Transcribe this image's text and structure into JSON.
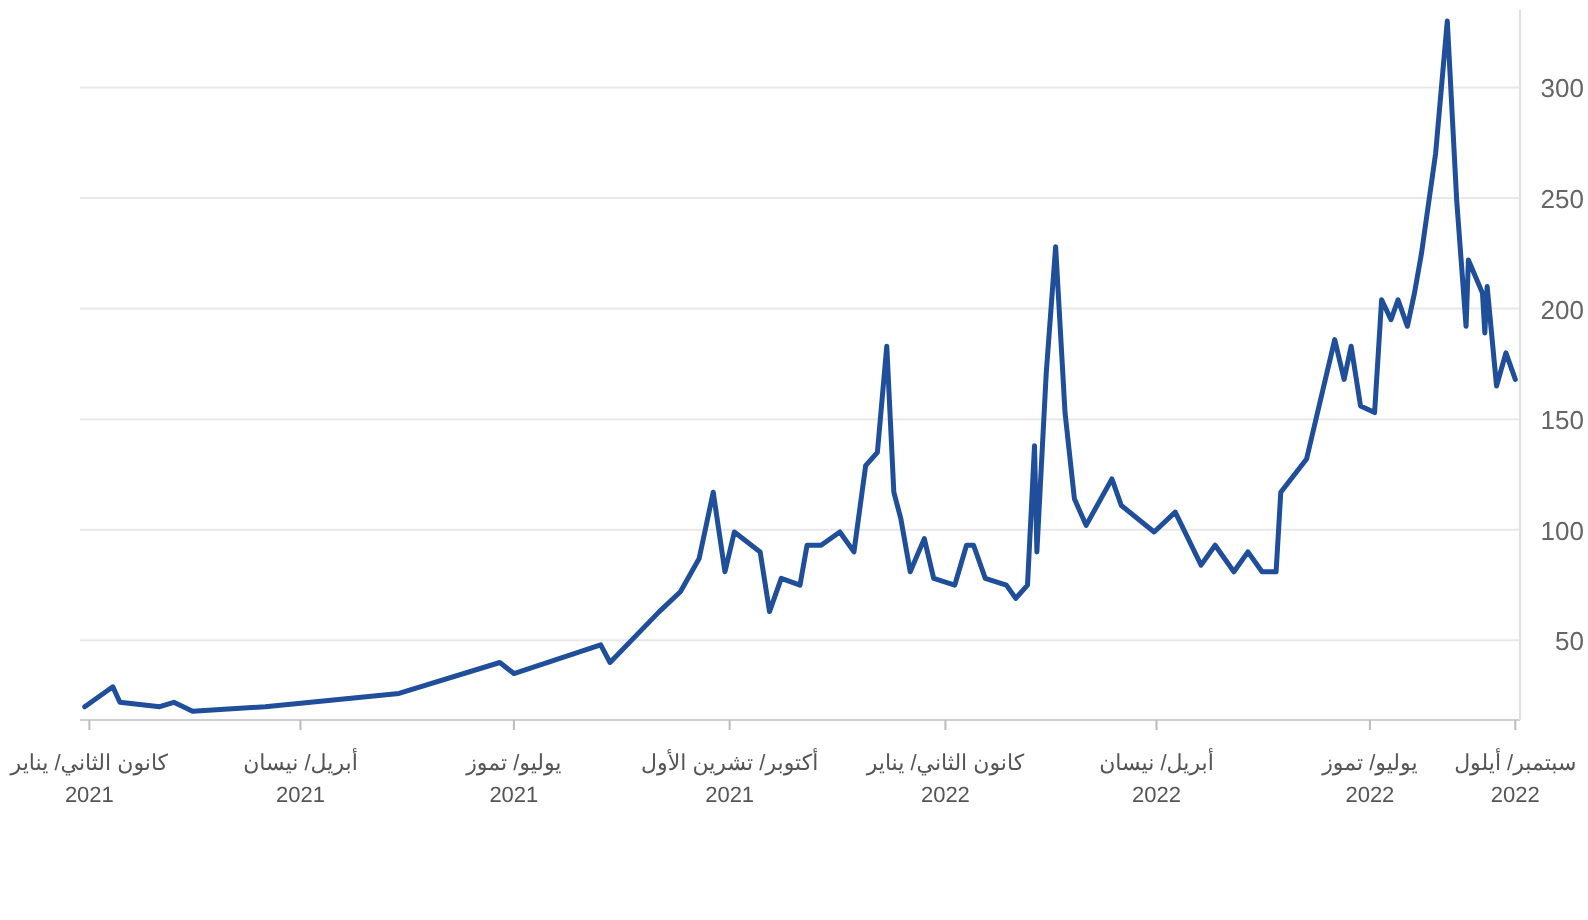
{
  "chart_data": {
    "type": "line",
    "x": [
      "2020-12-30",
      "2021-01-11",
      "2021-01-14",
      "2021-01-31",
      "2021-02-06",
      "2021-02-14",
      "2021-03-17",
      "2021-05-13",
      "2021-06-25",
      "2021-07-01",
      "2021-08-07",
      "2021-08-11",
      "2021-09-01",
      "2021-09-10",
      "2021-09-18",
      "2021-09-24",
      "2021-09-29",
      "2021-10-03",
      "2021-10-14",
      "2021-10-18",
      "2021-10-23",
      "2021-10-31",
      "2021-11-03",
      "2021-11-09",
      "2021-11-17",
      "2021-11-23",
      "2021-11-28",
      "2021-12-03",
      "2021-12-07",
      "2021-12-10",
      "2021-12-13",
      "2021-12-17",
      "2021-12-23",
      "2021-12-27",
      "2022-01-05",
      "2022-01-10",
      "2022-01-13",
      "2022-01-18",
      "2022-01-27",
      "2022-01-31",
      "2022-02-05",
      "2022-02-08",
      "2022-02-09",
      "2022-02-13",
      "2022-02-17",
      "2022-02-21",
      "2022-02-25",
      "2022-03-02",
      "2022-03-13",
      "2022-03-17",
      "2022-03-31",
      "2022-04-09",
      "2022-04-20",
      "2022-04-26",
      "2022-05-04",
      "2022-05-10",
      "2022-05-16",
      "2022-05-22",
      "2022-05-24",
      "2022-06-04",
      "2022-06-16",
      "2022-06-20",
      "2022-06-23",
      "2022-06-27",
      "2022-07-03",
      "2022-07-06",
      "2022-07-10",
      "2022-07-13",
      "2022-07-17",
      "2022-07-20",
      "2022-07-23",
      "2022-07-29",
      "2022-08-03",
      "2022-08-07",
      "2022-08-11",
      "2022-08-12",
      "2022-08-18",
      "2022-08-19",
      "2022-08-20",
      "2022-08-24",
      "2022-08-28",
      "2022-09-01"
    ],
    "series": [
      {
        "color": "#1f4e9a",
        "values": [
          20,
          29,
          22,
          20,
          22,
          18,
          20,
          26,
          40,
          35,
          48,
          40,
          63,
          72,
          87,
          117,
          81,
          99,
          90,
          63,
          78,
          75,
          93,
          93,
          99,
          90,
          129,
          135,
          183,
          117,
          105,
          81,
          96,
          78,
          75,
          93,
          93,
          78,
          75,
          69,
          75,
          138,
          90,
          171,
          228,
          153,
          114,
          102,
          123,
          111,
          99,
          108,
          84,
          93,
          81,
          90,
          81,
          81,
          117,
          132,
          186,
          168,
          183,
          156,
          153,
          204,
          195,
          204,
          192,
          207,
          225,
          270,
          330,
          249,
          192,
          222,
          207,
          189,
          210,
          165,
          180,
          168
        ]
      }
    ],
    "xlim": [
      "2020-12-28",
      "2022-09-03"
    ],
    "ylim": [
      14,
      335
    ],
    "xticks": [
      {
        "value": "2021-01-01",
        "label": "كانون الثاني/ يناير\n2021"
      },
      {
        "value": "2021-04-01",
        "label": "أبريل/ نيسان\n2021"
      },
      {
        "value": "2021-07-01",
        "label": "يوليو/ تموز\n2021"
      },
      {
        "value": "2021-10-01",
        "label": "أكتوبر/ تشرين الأول\n2021"
      },
      {
        "value": "2022-01-01",
        "label": "كانون الثاني/ يناير\n2022"
      },
      {
        "value": "2022-04-01",
        "label": "أبريل/ نيسان\n2022"
      },
      {
        "value": "2022-07-01",
        "label": "يوليو/ تموز\n2022"
      },
      {
        "value": "2022-09-01",
        "label": "سبتمبر/ أيلول\n2022"
      }
    ],
    "yticks": [
      50,
      100,
      150,
      200,
      250,
      300
    ],
    "grid": "y"
  }
}
